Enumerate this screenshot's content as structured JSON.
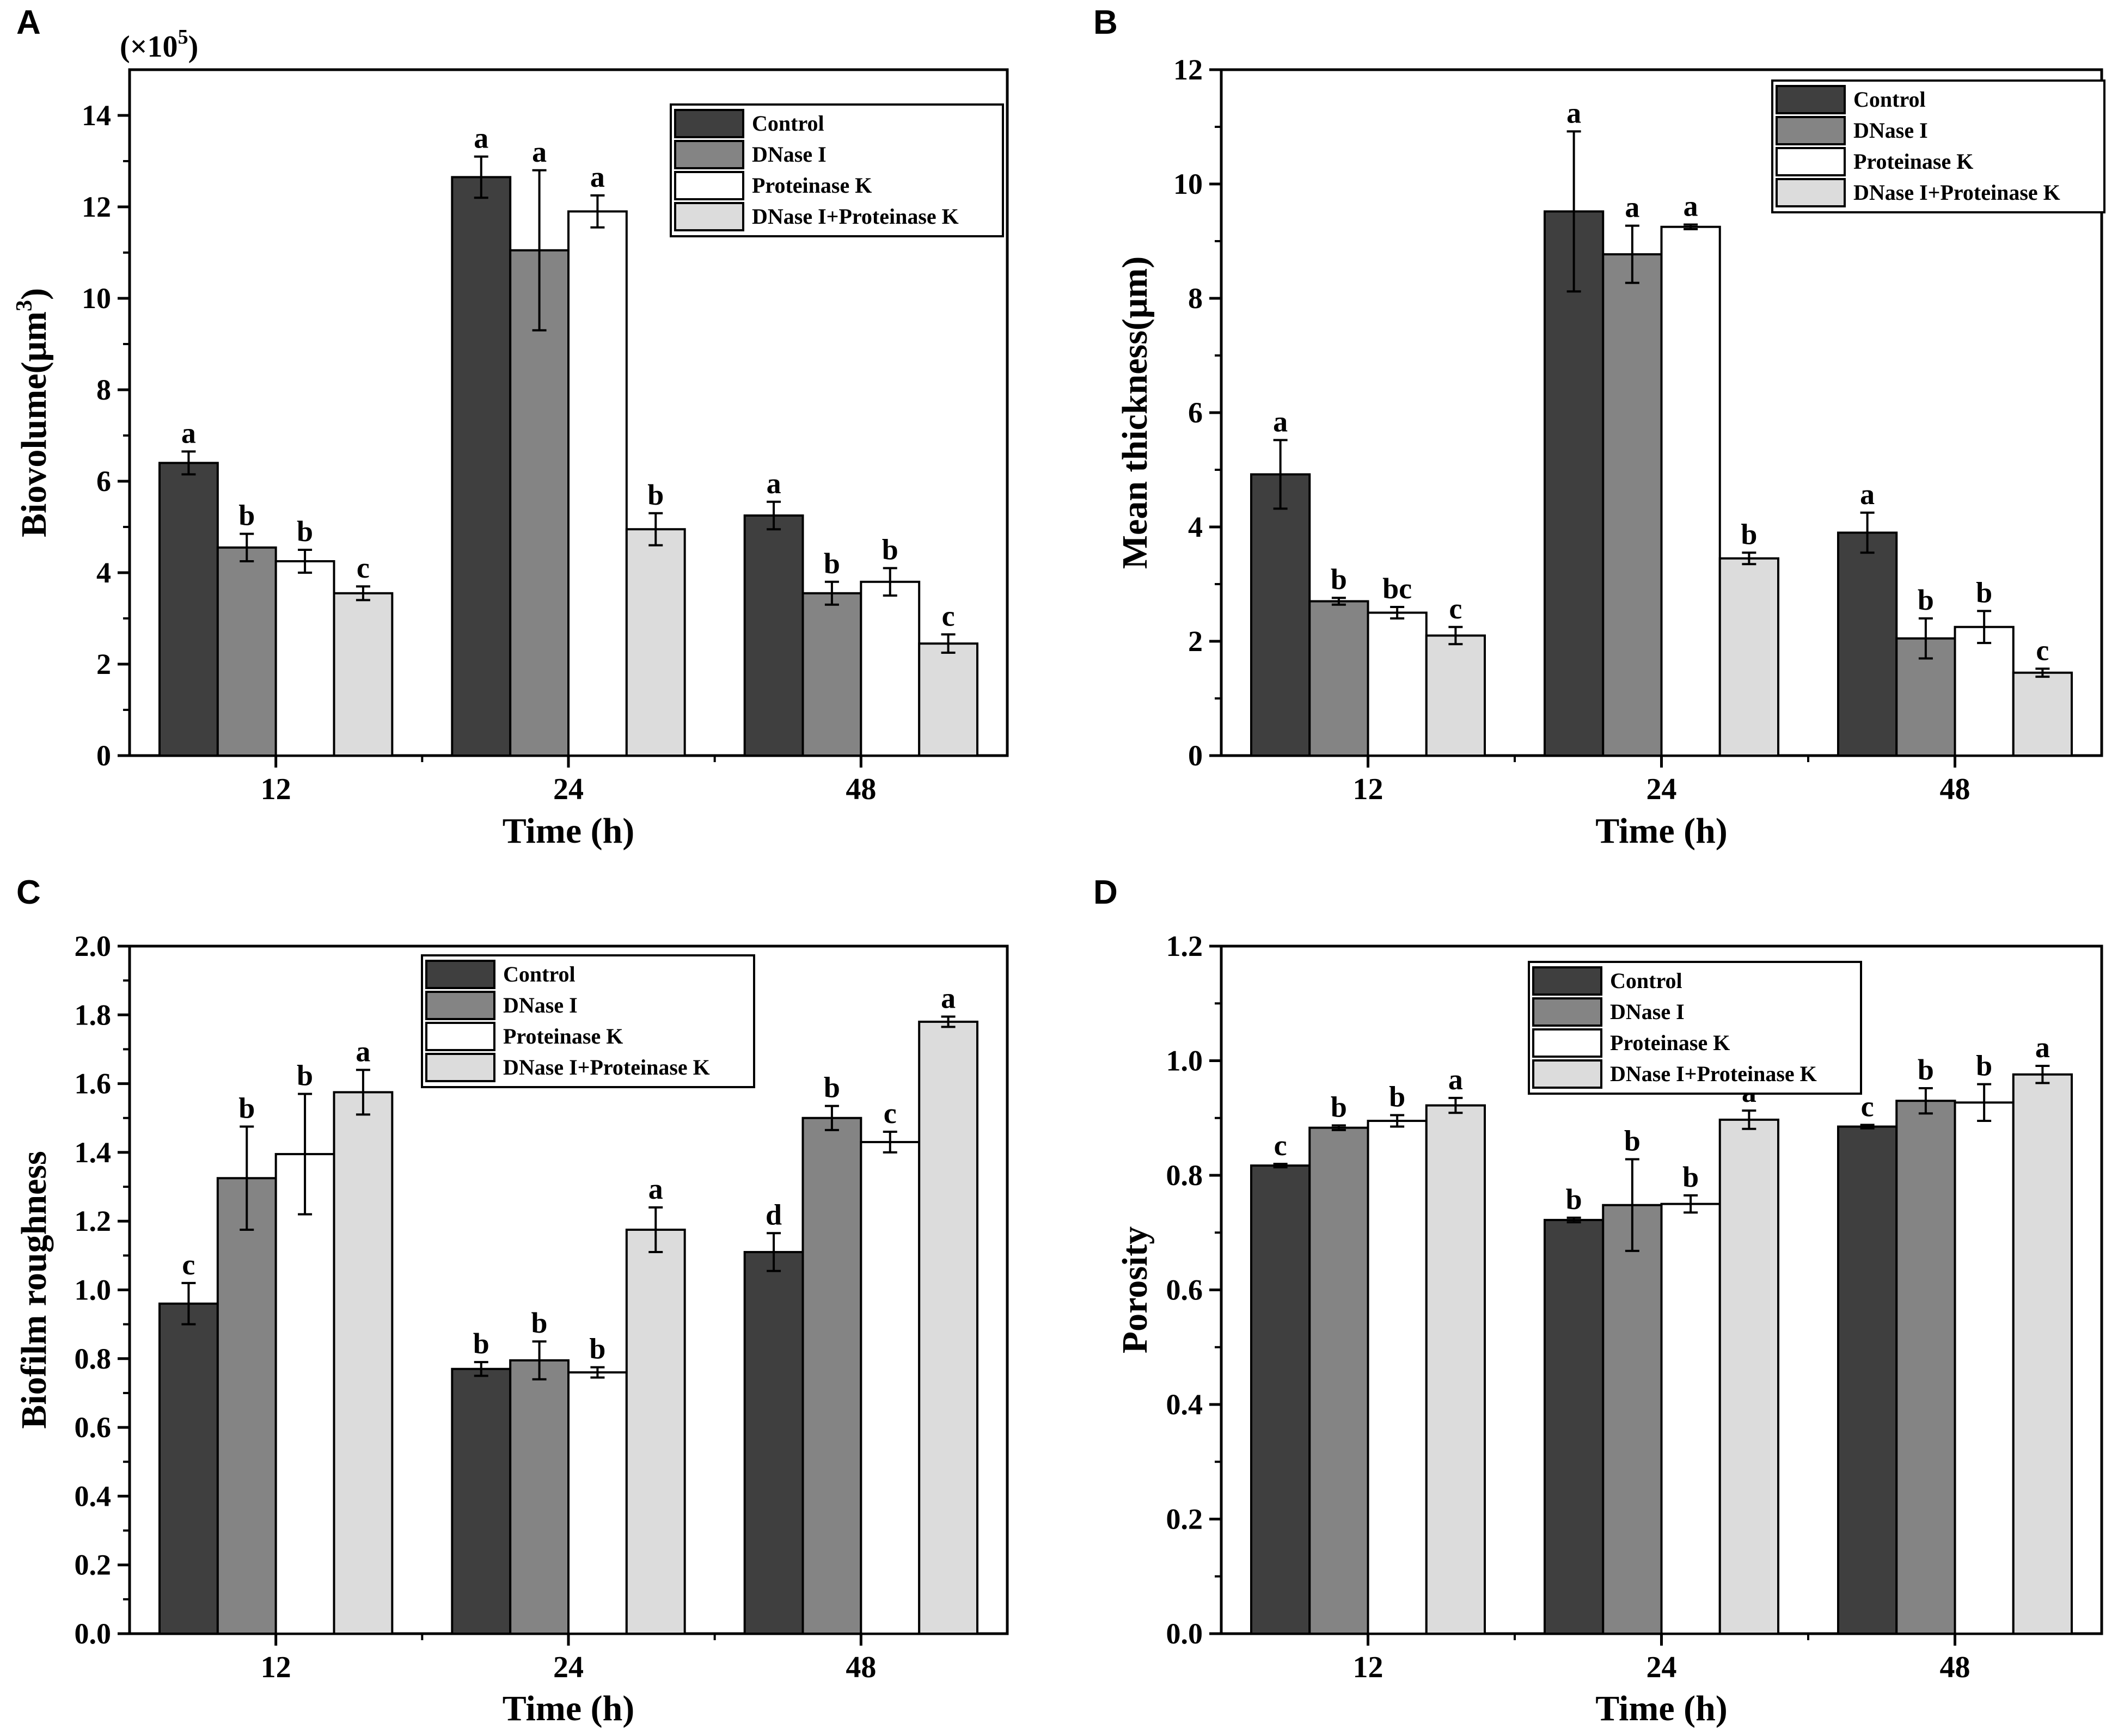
{
  "colors": {
    "Control": "#3f3f3f",
    "DNase I": "#848484",
    "Proteinase K": "#ffffff",
    "DNase I+Proteinase K": "#dcdcdc"
  },
  "chart_data": [
    {
      "panel_label": "A",
      "type": "bar",
      "multiplier": "(×10",
      "multiplier_exp": "5",
      "multiplier_close": ")",
      "ylabel": "Biovolume(μm",
      "ylabel_sup": "3",
      "ylabel_close": ")",
      "xlabel": "Time (h)",
      "categories": [
        "12",
        "24",
        "48"
      ],
      "ylim": [
        0,
        15
      ],
      "yticks": [
        0,
        2,
        4,
        6,
        8,
        10,
        12,
        14
      ],
      "legend": [
        "Control",
        "DNase I",
        "Proteinase K",
        "DNase I+Proteinase K"
      ],
      "legend_position": "top-right",
      "series": [
        {
          "name": "Control",
          "values": [
            6.4,
            12.65,
            5.25
          ],
          "errors": [
            0.25,
            0.45,
            0.3
          ],
          "letters": [
            "a",
            "a",
            "a"
          ]
        },
        {
          "name": "DNase I",
          "values": [
            4.55,
            11.05,
            3.55
          ],
          "errors": [
            0.3,
            1.75,
            0.25
          ],
          "letters": [
            "b",
            "a",
            "b"
          ]
        },
        {
          "name": "Proteinase K",
          "values": [
            4.25,
            11.9,
            3.8
          ],
          "errors": [
            0.25,
            0.35,
            0.3
          ],
          "letters": [
            "b",
            "a",
            "b"
          ]
        },
        {
          "name": "DNase I+Proteinase K",
          "values": [
            3.55,
            4.95,
            2.45
          ],
          "errors": [
            0.15,
            0.35,
            0.2
          ],
          "letters": [
            "c",
            "b",
            "c"
          ]
        }
      ]
    },
    {
      "panel_label": "B",
      "type": "bar",
      "ylabel": "Mean thickness(μm)",
      "xlabel": "Time (h)",
      "categories": [
        "12",
        "24",
        "48"
      ],
      "ylim": [
        0,
        12
      ],
      "yticks": [
        0,
        2,
        4,
        6,
        8,
        10,
        12
      ],
      "legend": [
        "Control",
        "DNase I",
        "Proteinase K",
        "DNase I+Proteinase K"
      ],
      "legend_position": "top-right",
      "series": [
        {
          "name": "Control",
          "values": [
            4.92,
            9.52,
            3.9
          ],
          "errors": [
            0.6,
            1.4,
            0.35
          ],
          "letters": [
            "a",
            "a",
            "a"
          ]
        },
        {
          "name": "DNase I",
          "values": [
            2.7,
            8.77,
            2.05
          ],
          "errors": [
            0.06,
            0.5,
            0.35
          ],
          "letters": [
            "b",
            "a",
            "b"
          ]
        },
        {
          "name": "Proteinase K",
          "values": [
            2.5,
            9.25,
            2.25
          ],
          "errors": [
            0.1,
            0.04,
            0.28
          ],
          "letters": [
            "bc",
            "a",
            "b"
          ]
        },
        {
          "name": "DNase I+Proteinase K",
          "values": [
            2.1,
            3.45,
            1.45
          ],
          "errors": [
            0.15,
            0.1,
            0.07
          ],
          "letters": [
            "c",
            "b",
            "c"
          ]
        }
      ]
    },
    {
      "panel_label": "C",
      "type": "bar",
      "ylabel": "Biofilm roughness",
      "xlabel": "Time (h)",
      "categories": [
        "12",
        "24",
        "48"
      ],
      "ylim": [
        0,
        2
      ],
      "yticks": [
        0.0,
        0.2,
        0.4,
        0.6,
        0.8,
        1.0,
        1.2,
        1.4,
        1.6,
        1.8,
        2.0
      ],
      "tick_format": "fixed1",
      "legend": [
        "Control",
        "DNase I",
        "Proteinase K",
        "DNase I+Proteinase K"
      ],
      "legend_position": "top-center",
      "series": [
        {
          "name": "Control",
          "values": [
            0.96,
            0.77,
            1.11
          ],
          "errors": [
            0.06,
            0.02,
            0.055
          ],
          "letters": [
            "c",
            "b",
            "d"
          ]
        },
        {
          "name": "DNase I",
          "values": [
            1.325,
            0.795,
            1.5
          ],
          "errors": [
            0.15,
            0.055,
            0.035
          ],
          "letters": [
            "b",
            "b",
            "b"
          ]
        },
        {
          "name": "Proteinase K",
          "values": [
            1.395,
            0.76,
            1.43
          ],
          "errors": [
            0.175,
            0.015,
            0.03
          ],
          "letters": [
            "b",
            "b",
            "c"
          ]
        },
        {
          "name": "DNase I+Proteinase K",
          "values": [
            1.575,
            1.175,
            1.78
          ],
          "errors": [
            0.065,
            0.065,
            0.015
          ],
          "letters": [
            "a",
            "a",
            "a"
          ]
        }
      ]
    },
    {
      "panel_label": "D",
      "type": "bar",
      "ylabel": "Porosity",
      "xlabel": "Time (h)",
      "categories": [
        "12",
        "24",
        "48"
      ],
      "ylim": [
        0,
        1.2
      ],
      "yticks": [
        0.0,
        0.2,
        0.4,
        0.6,
        0.8,
        1.0,
        1.2
      ],
      "tick_format": "fixed1",
      "legend": [
        "Control",
        "DNase I",
        "Proteinase K",
        "DNase I+Proteinase K"
      ],
      "legend_position": "top-center",
      "series": [
        {
          "name": "Control",
          "values": [
            0.817,
            0.722,
            0.885
          ],
          "errors": [
            0.003,
            0.004,
            0.003
          ],
          "letters": [
            "c",
            "b",
            "c"
          ]
        },
        {
          "name": "DNase I",
          "values": [
            0.883,
            0.748,
            0.93
          ],
          "errors": [
            0.004,
            0.08,
            0.022
          ],
          "letters": [
            "b",
            "b",
            "b"
          ]
        },
        {
          "name": "Proteinase K",
          "values": [
            0.895,
            0.75,
            0.927
          ],
          "errors": [
            0.01,
            0.015,
            0.032
          ],
          "letters": [
            "b",
            "b",
            "b"
          ]
        },
        {
          "name": "DNase I+Proteinase K",
          "values": [
            0.922,
            0.897,
            0.976
          ],
          "errors": [
            0.013,
            0.016,
            0.015
          ],
          "letters": [
            "a",
            "a",
            "a"
          ]
        }
      ]
    }
  ]
}
